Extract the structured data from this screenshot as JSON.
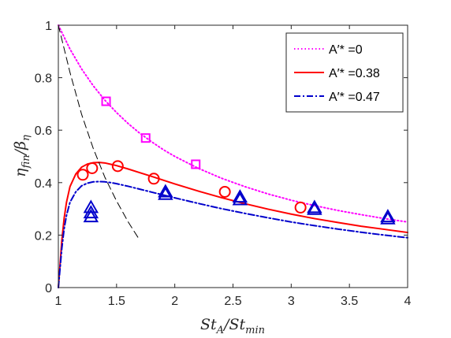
{
  "chart_data": {
    "type": "line",
    "xlabel": "St_A/St_min",
    "ylabel": "η_fin/β_η",
    "xlim": [
      1,
      4
    ],
    "ylim": [
      0,
      1
    ],
    "x_ticks": [
      "1",
      "1.5",
      "2",
      "2.5",
      "3",
      "3.5",
      "4"
    ],
    "y_ticks": [
      "0",
      "0.2",
      "0.4",
      "0.6",
      "0.8",
      "1"
    ],
    "grid": false,
    "legend_position": "top-right",
    "series": [
      {
        "name": "A′* =0",
        "color": "#ff00ff",
        "style": "dotted",
        "curve_x": [
          1.0,
          1.1,
          1.2,
          1.3,
          1.4,
          1.5,
          1.6,
          1.7,
          1.8,
          1.9,
          2.0,
          2.2,
          2.4,
          2.6,
          2.8,
          3.0,
          3.2,
          3.4,
          3.6,
          3.8,
          4.0
        ],
        "curve_y": [
          1.0,
          0.909,
          0.833,
          0.769,
          0.714,
          0.667,
          0.625,
          0.588,
          0.556,
          0.526,
          0.5,
          0.455,
          0.417,
          0.385,
          0.357,
          0.333,
          0.3125,
          0.294,
          0.278,
          0.263,
          0.25
        ],
        "marker": "square",
        "points_x": [
          1.41,
          1.75,
          2.18
        ],
        "points_y": [
          0.71,
          0.57,
          0.47
        ]
      },
      {
        "name": "A′* =0.38",
        "color": "#ff0000",
        "style": "solid",
        "curve_x": [
          1.0,
          1.01,
          1.02,
          1.03,
          1.05,
          1.07,
          1.1,
          1.15,
          1.2,
          1.25,
          1.3,
          1.35,
          1.4,
          1.45,
          1.5,
          1.6,
          1.7,
          1.8,
          2.0,
          2.2,
          2.4,
          2.6,
          2.8,
          3.0,
          3.2,
          3.4,
          3.6,
          3.8,
          4.0
        ],
        "curve_y": [
          0.0,
          0.06,
          0.12,
          0.18,
          0.265,
          0.325,
          0.385,
          0.433,
          0.459,
          0.471,
          0.476,
          0.477,
          0.475,
          0.47,
          0.465,
          0.452,
          0.438,
          0.424,
          0.395,
          0.368,
          0.343,
          0.32,
          0.299,
          0.28,
          0.263,
          0.248,
          0.234,
          0.222,
          0.21
        ],
        "marker": "circle",
        "points_x": [
          1.21,
          1.29,
          1.51,
          1.82,
          2.43,
          3.08
        ],
        "points_y": [
          0.43,
          0.455,
          0.463,
          0.415,
          0.365,
          0.305
        ]
      },
      {
        "name": "A′* =0.47",
        "color": "#0000cc",
        "style": "dashdot",
        "curve_x": [
          1.0,
          1.01,
          1.02,
          1.03,
          1.05,
          1.07,
          1.1,
          1.15,
          1.2,
          1.25,
          1.3,
          1.35,
          1.4,
          1.45,
          1.5,
          1.6,
          1.7,
          1.8,
          2.0,
          2.2,
          2.4,
          2.6,
          2.8,
          3.0,
          3.2,
          3.4,
          3.6,
          3.8,
          4.0
        ],
        "curve_y": [
          0.0,
          0.05,
          0.1,
          0.15,
          0.225,
          0.275,
          0.325,
          0.365,
          0.388,
          0.398,
          0.403,
          0.404,
          0.403,
          0.4,
          0.396,
          0.386,
          0.375,
          0.364,
          0.342,
          0.321,
          0.301,
          0.283,
          0.266,
          0.25,
          0.236,
          0.223,
          0.211,
          0.2,
          0.19
        ],
        "marker": "triangle",
        "points_x": [
          1.28,
          1.28,
          1.28,
          1.92,
          1.92,
          2.56,
          2.56,
          3.2,
          3.2,
          3.83,
          3.83
        ],
        "points_y": [
          0.305,
          0.285,
          0.27,
          0.365,
          0.355,
          0.345,
          0.335,
          0.305,
          0.298,
          0.27,
          0.262
        ]
      },
      {
        "color": "#000000",
        "style": "dashed",
        "curve_x": [
          1.0,
          1.1,
          1.2,
          1.3,
          1.4,
          1.5,
          1.6,
          1.7
        ],
        "curve_y": [
          1.0,
          0.82,
          0.66,
          0.53,
          0.42,
          0.33,
          0.25,
          0.18
        ]
      }
    ]
  }
}
